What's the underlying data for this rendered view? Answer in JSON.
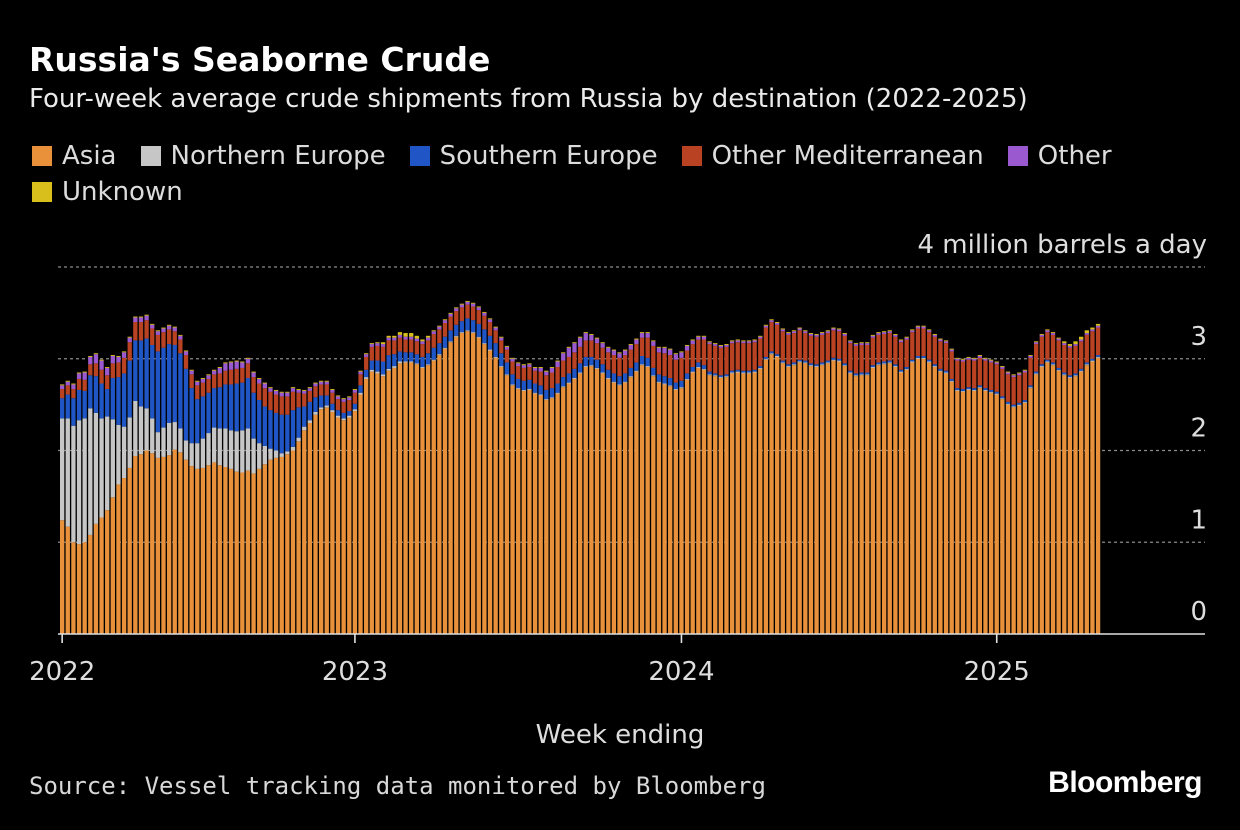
{
  "chart_data": {
    "type": "bar",
    "stacked": true,
    "title": "Russia's Seaborne Crude",
    "subtitle": "Four-week average crude shipments from Russia by destination (2022-2025)",
    "xlabel": "Week ending",
    "y_unit_label": "4 million barrels a day",
    "ylim": [
      0,
      4
    ],
    "y_ticks": [
      {
        "value": 0,
        "label": "0"
      },
      {
        "value": 1,
        "label": "1"
      },
      {
        "value": 2,
        "label": "2"
      },
      {
        "value": 3,
        "label": "3"
      },
      {
        "value": 4,
        "label": "4 million barrels a day"
      }
    ],
    "x_ticks": [
      {
        "week": 0,
        "label": "2022"
      },
      {
        "week": 52,
        "label": "2023"
      },
      {
        "week": 110,
        "label": "2024"
      },
      {
        "week": 166,
        "label": "2025"
      }
    ],
    "grid": true,
    "legend_position": "top",
    "source": "Source: Vessel tracking data monitored by Bloomberg",
    "brand": "Bloomberg",
    "series": [
      {
        "name": "Asia",
        "color": "#e8913a",
        "values": [
          1.24,
          1.17,
          1.0,
          0.98,
          1.0,
          1.08,
          1.2,
          1.27,
          1.35,
          1.49,
          1.63,
          1.7,
          1.81,
          1.94,
          1.96,
          2.0,
          1.97,
          1.92,
          1.93,
          1.95,
          2.01,
          1.98,
          1.9,
          1.83,
          1.8,
          1.81,
          1.84,
          1.87,
          1.84,
          1.82,
          1.8,
          1.77,
          1.76,
          1.78,
          1.75,
          1.8,
          1.85,
          1.9,
          1.92,
          1.93,
          1.96,
          2.0,
          2.1,
          2.22,
          2.3,
          2.39,
          2.45,
          2.47,
          2.42,
          2.36,
          2.33,
          2.36,
          2.43,
          2.61,
          2.78,
          2.86,
          2.84,
          2.81,
          2.87,
          2.9,
          2.95,
          2.96,
          2.96,
          2.94,
          2.9,
          2.93,
          2.98,
          3.04,
          3.11,
          3.18,
          3.24,
          3.28,
          3.3,
          3.28,
          3.23,
          3.16,
          3.09,
          3.01,
          2.91,
          2.82,
          2.71,
          2.67,
          2.65,
          2.66,
          2.62,
          2.6,
          2.55,
          2.57,
          2.62,
          2.69,
          2.73,
          2.78,
          2.84,
          2.91,
          2.92,
          2.89,
          2.84,
          2.78,
          2.74,
          2.71,
          2.74,
          2.8,
          2.86,
          2.93,
          2.91,
          2.81,
          2.74,
          2.72,
          2.7,
          2.66,
          2.68,
          2.77,
          2.85,
          2.9,
          2.88,
          2.82,
          2.81,
          2.79,
          2.8,
          2.84,
          2.85,
          2.84,
          2.84,
          2.85,
          2.89,
          2.99,
          3.05,
          3.02,
          2.95,
          2.91,
          2.93,
          2.96,
          2.95,
          2.92,
          2.91,
          2.93,
          2.95,
          2.98,
          2.97,
          2.92,
          2.84,
          2.81,
          2.82,
          2.82,
          2.9,
          2.93,
          2.94,
          2.95,
          2.91,
          2.85,
          2.88,
          2.96,
          3.0,
          3.0,
          2.96,
          2.91,
          2.86,
          2.84,
          2.75,
          2.65,
          2.64,
          2.66,
          2.65,
          2.68,
          2.65,
          2.63,
          2.61,
          2.56,
          2.5,
          2.47,
          2.49,
          2.52,
          2.68,
          2.83,
          2.91,
          2.96,
          2.93,
          2.87,
          2.82,
          2.79,
          2.81,
          2.86,
          2.93,
          2.97,
          3.01
        ]
      },
      {
        "name": "Northern Europe",
        "color": "#c6c6c6",
        "values": [
          1.11,
          1.18,
          1.27,
          1.35,
          1.35,
          1.38,
          1.21,
          1.08,
          1.02,
          0.85,
          0.65,
          0.56,
          0.55,
          0.6,
          0.52,
          0.46,
          0.38,
          0.28,
          0.32,
          0.35,
          0.3,
          0.26,
          0.21,
          0.25,
          0.28,
          0.32,
          0.35,
          0.38,
          0.4,
          0.42,
          0.42,
          0.44,
          0.46,
          0.46,
          0.38,
          0.28,
          0.2,
          0.12,
          0.08,
          0.04,
          0.03,
          0.04,
          0.04,
          0.04,
          0.03,
          0.03,
          0.02,
          0.02,
          0.02,
          0.02,
          0.02,
          0.02,
          0.02,
          0.02,
          0.02,
          0.02,
          0.02,
          0.02,
          0.02,
          0.02,
          0.02,
          0.01,
          0.01,
          0.01,
          0.01,
          0.01,
          0.01,
          0.01,
          0.01,
          0.01,
          0.01,
          0.01,
          0.01,
          0.01,
          0.01,
          0.01,
          0.01,
          0.01,
          0.01,
          0.01,
          0.01,
          0.01,
          0.01,
          0.01,
          0.01,
          0.01,
          0.01,
          0.01,
          0.01,
          0.01,
          0.01,
          0.01,
          0.01,
          0.01,
          0.01,
          0.01,
          0.01,
          0.01,
          0.01,
          0.01,
          0.01,
          0.01,
          0.01,
          0.01,
          0.01,
          0.01,
          0.01,
          0.01,
          0.01,
          0.01,
          0.01,
          0.01,
          0.01,
          0.01,
          0.01,
          0.01,
          0.01,
          0.01,
          0.01,
          0.01,
          0.01,
          0.01,
          0.01,
          0.01,
          0.01,
          0.01,
          0.01,
          0.01,
          0.01,
          0.01,
          0.01,
          0.01,
          0.01,
          0.01,
          0.01,
          0.01,
          0.01,
          0.01,
          0.01,
          0.01,
          0.01,
          0.01,
          0.01,
          0.01,
          0.01,
          0.01,
          0.01,
          0.01,
          0.01,
          0.01,
          0.01,
          0.01,
          0.01,
          0.01,
          0.01,
          0.01,
          0.01,
          0.01,
          0.01,
          0.01,
          0.01,
          0.01,
          0.01,
          0.01,
          0.01,
          0.01,
          0.01,
          0.01,
          0.01,
          0.01,
          0.01,
          0.01,
          0.01,
          0.01,
          0.01,
          0.01,
          0.01,
          0.01,
          0.01,
          0.01,
          0.01,
          0.01,
          0.01,
          0.01,
          0.01,
          0.01,
          0.01,
          0.01,
          0.01,
          0.01,
          0.01
        ]
      },
      {
        "name": "Southern Europe",
        "color": "#1f55c4",
        "values": [
          0.22,
          0.26,
          0.3,
          0.33,
          0.3,
          0.36,
          0.4,
          0.38,
          0.3,
          0.45,
          0.52,
          0.58,
          0.62,
          0.66,
          0.72,
          0.76,
          0.8,
          0.88,
          0.87,
          0.86,
          0.84,
          0.82,
          0.78,
          0.6,
          0.48,
          0.46,
          0.44,
          0.43,
          0.45,
          0.48,
          0.5,
          0.52,
          0.52,
          0.55,
          0.5,
          0.47,
          0.43,
          0.42,
          0.41,
          0.42,
          0.4,
          0.4,
          0.33,
          0.22,
          0.2,
          0.16,
          0.13,
          0.11,
          0.07,
          0.06,
          0.06,
          0.05,
          0.06,
          0.08,
          0.08,
          0.1,
          0.12,
          0.14,
          0.15,
          0.13,
          0.11,
          0.1,
          0.1,
          0.1,
          0.11,
          0.12,
          0.13,
          0.12,
          0.12,
          0.12,
          0.12,
          0.12,
          0.13,
          0.13,
          0.14,
          0.15,
          0.15,
          0.15,
          0.14,
          0.13,
          0.11,
          0.1,
          0.1,
          0.1,
          0.1,
          0.1,
          0.1,
          0.1,
          0.1,
          0.1,
          0.1,
          0.1,
          0.1,
          0.1,
          0.09,
          0.09,
          0.09,
          0.09,
          0.09,
          0.09,
          0.09,
          0.09,
          0.09,
          0.09,
          0.09,
          0.08,
          0.08,
          0.08,
          0.08,
          0.07,
          0.07,
          0.06,
          0.05,
          0.05,
          0.04,
          0.03,
          0.02,
          0.02,
          0.02,
          0.02,
          0.02,
          0.02,
          0.02,
          0.02,
          0.02,
          0.02,
          0.02,
          0.02,
          0.02,
          0.02,
          0.02,
          0.02,
          0.02,
          0.02,
          0.02,
          0.02,
          0.02,
          0.02,
          0.02,
          0.02,
          0.02,
          0.02,
          0.02,
          0.02,
          0.02,
          0.02,
          0.02,
          0.02,
          0.02,
          0.02,
          0.02,
          0.02,
          0.02,
          0.02,
          0.02,
          0.02,
          0.02,
          0.02,
          0.02,
          0.02,
          0.02,
          0.02,
          0.02,
          0.02,
          0.02,
          0.02,
          0.02,
          0.02,
          0.02,
          0.02,
          0.02,
          0.02,
          0.02,
          0.02,
          0.02,
          0.02,
          0.02,
          0.02,
          0.02,
          0.02,
          0.02,
          0.02,
          0.02,
          0.02,
          0.02,
          0.02,
          0.02,
          0.02,
          0.02,
          0.02,
          0.02,
          0.02,
          0.02,
          0.02,
          0.02
        ]
      },
      {
        "name": "Other Mediterranean",
        "color": "#b84222",
        "values": [
          0.1,
          0.1,
          0.1,
          0.12,
          0.12,
          0.12,
          0.14,
          0.15,
          0.15,
          0.16,
          0.16,
          0.17,
          0.2,
          0.2,
          0.2,
          0.2,
          0.18,
          0.18,
          0.17,
          0.16,
          0.15,
          0.15,
          0.15,
          0.15,
          0.15,
          0.15,
          0.15,
          0.15,
          0.15,
          0.15,
          0.16,
          0.16,
          0.16,
          0.16,
          0.17,
          0.18,
          0.2,
          0.2,
          0.2,
          0.2,
          0.2,
          0.2,
          0.16,
          0.14,
          0.12,
          0.12,
          0.12,
          0.12,
          0.12,
          0.12,
          0.12,
          0.12,
          0.12,
          0.12,
          0.14,
          0.15,
          0.16,
          0.16,
          0.16,
          0.15,
          0.15,
          0.14,
          0.14,
          0.14,
          0.14,
          0.14,
          0.15,
          0.15,
          0.15,
          0.15,
          0.15,
          0.15,
          0.15,
          0.15,
          0.15,
          0.15,
          0.15,
          0.14,
          0.14,
          0.14,
          0.14,
          0.14,
          0.14,
          0.14,
          0.14,
          0.15,
          0.16,
          0.17,
          0.18,
          0.18,
          0.18,
          0.18,
          0.18,
          0.18,
          0.18,
          0.18,
          0.18,
          0.19,
          0.2,
          0.2,
          0.2,
          0.2,
          0.2,
          0.2,
          0.22,
          0.24,
          0.24,
          0.25,
          0.25,
          0.25,
          0.25,
          0.25,
          0.25,
          0.25,
          0.28,
          0.3,
          0.3,
          0.3,
          0.3,
          0.3,
          0.3,
          0.3,
          0.3,
          0.3,
          0.3,
          0.32,
          0.32,
          0.32,
          0.32,
          0.32,
          0.32,
          0.32,
          0.3,
          0.3,
          0.3,
          0.3,
          0.3,
          0.3,
          0.3,
          0.3,
          0.3,
          0.3,
          0.3,
          0.3,
          0.3,
          0.3,
          0.3,
          0.3,
          0.3,
          0.3,
          0.3,
          0.3,
          0.3,
          0.3,
          0.3,
          0.3,
          0.3,
          0.3,
          0.3,
          0.3,
          0.3,
          0.3,
          0.3,
          0.3,
          0.3,
          0.3,
          0.3,
          0.3,
          0.3,
          0.3,
          0.3,
          0.3,
          0.3,
          0.3,
          0.3,
          0.3,
          0.3,
          0.3,
          0.3,
          0.3,
          0.3,
          0.3,
          0.3,
          0.3,
          0.3,
          0.3,
          0.3,
          0.3,
          0.3,
          0.3,
          0.3,
          0.3,
          0.3
        ]
      },
      {
        "name": "Other",
        "color": "#9b59d0",
        "values": [
          0.04,
          0.04,
          0.05,
          0.06,
          0.08,
          0.08,
          0.1,
          0.1,
          0.08,
          0.08,
          0.06,
          0.06,
          0.05,
          0.05,
          0.05,
          0.05,
          0.04,
          0.04,
          0.04,
          0.04,
          0.04,
          0.04,
          0.04,
          0.04,
          0.04,
          0.04,
          0.04,
          0.04,
          0.06,
          0.08,
          0.08,
          0.08,
          0.06,
          0.05,
          0.05,
          0.05,
          0.05,
          0.04,
          0.04,
          0.04,
          0.04,
          0.04,
          0.03,
          0.03,
          0.03,
          0.03,
          0.03,
          0.03,
          0.03,
          0.03,
          0.03,
          0.03,
          0.03,
          0.03,
          0.03,
          0.03,
          0.03,
          0.03,
          0.03,
          0.03,
          0.03,
          0.03,
          0.03,
          0.03,
          0.03,
          0.03,
          0.03,
          0.03,
          0.03,
          0.03,
          0.03,
          0.03,
          0.03,
          0.03,
          0.03,
          0.03,
          0.03,
          0.03,
          0.03,
          0.03,
          0.03,
          0.03,
          0.03,
          0.03,
          0.03,
          0.04,
          0.04,
          0.05,
          0.06,
          0.08,
          0.1,
          0.1,
          0.1,
          0.08,
          0.06,
          0.05,
          0.05,
          0.05,
          0.05,
          0.05,
          0.05,
          0.05,
          0.05,
          0.05,
          0.05,
          0.05,
          0.05,
          0.06,
          0.06,
          0.06,
          0.06,
          0.05,
          0.04,
          0.03,
          0.03,
          0.02,
          0.02,
          0.02,
          0.02,
          0.02,
          0.02,
          0.02,
          0.02,
          0.02,
          0.02,
          0.02,
          0.02,
          0.02,
          0.02,
          0.02,
          0.02,
          0.02,
          0.02,
          0.02,
          0.02,
          0.02,
          0.02,
          0.02,
          0.02,
          0.02,
          0.02,
          0.02,
          0.02,
          0.02,
          0.02,
          0.02,
          0.02,
          0.02,
          0.02,
          0.02,
          0.02,
          0.02,
          0.02,
          0.02,
          0.02,
          0.02,
          0.02,
          0.02,
          0.02,
          0.02,
          0.02,
          0.02,
          0.02,
          0.02,
          0.02,
          0.02,
          0.02,
          0.02,
          0.02,
          0.02,
          0.02,
          0.02,
          0.02,
          0.02,
          0.02,
          0.02,
          0.02,
          0.02,
          0.02,
          0.02,
          0.02,
          0.02,
          0.02,
          0.02,
          0.02,
          0.02,
          0.02,
          0.02,
          0.02,
          0.02,
          0.02,
          0.02,
          0.02
        ]
      },
      {
        "name": "Unknown",
        "color": "#d9bf1c",
        "values": [
          0.01,
          0.01,
          0.01,
          0.01,
          0.01,
          0.01,
          0.01,
          0.01,
          0.01,
          0.01,
          0.01,
          0.01,
          0.01,
          0.01,
          0.01,
          0.01,
          0.01,
          0.01,
          0.01,
          0.01,
          0.01,
          0.01,
          0.01,
          0.01,
          0.01,
          0.01,
          0.01,
          0.01,
          0.01,
          0.01,
          0.01,
          0.01,
          0.01,
          0.01,
          0.01,
          0.01,
          0.01,
          0.01,
          0.01,
          0.01,
          0.01,
          0.01,
          0.01,
          0.01,
          0.01,
          0.01,
          0.01,
          0.01,
          0.01,
          0.01,
          0.01,
          0.01,
          0.01,
          0.01,
          0.01,
          0.01,
          0.01,
          0.02,
          0.02,
          0.02,
          0.03,
          0.04,
          0.04,
          0.03,
          0.02,
          0.02,
          0.01,
          0.01,
          0.01,
          0.01,
          0.01,
          0.01,
          0.01,
          0.01,
          0.01,
          0.01,
          0.01,
          0.01,
          0.01,
          0.01,
          0.01,
          0.01,
          0.01,
          0.01,
          0.01,
          0.01,
          0.01,
          0.01,
          0.01,
          0.01,
          0.01,
          0.01,
          0.01,
          0.01,
          0.01,
          0.01,
          0.01,
          0.01,
          0.01,
          0.01,
          0.01,
          0.01,
          0.01,
          0.01,
          0.01,
          0.01,
          0.01,
          0.01,
          0.01,
          0.01,
          0.01,
          0.01,
          0.01,
          0.01,
          0.01,
          0.01,
          0.01,
          0.01,
          0.01,
          0.01,
          0.01,
          0.01,
          0.01,
          0.01,
          0.01,
          0.01,
          0.01,
          0.01,
          0.01,
          0.01,
          0.01,
          0.01,
          0.01,
          0.01,
          0.01,
          0.01,
          0.01,
          0.01,
          0.01,
          0.01,
          0.01,
          0.01,
          0.01,
          0.01,
          0.01,
          0.01,
          0.01,
          0.01,
          0.01,
          0.01,
          0.01,
          0.01,
          0.01,
          0.01,
          0.01,
          0.01,
          0.01,
          0.01,
          0.01,
          0.01,
          0.01,
          0.01,
          0.01,
          0.01,
          0.01,
          0.01,
          0.01,
          0.01,
          0.01,
          0.01,
          0.01,
          0.01,
          0.01,
          0.01,
          0.01,
          0.01,
          0.01,
          0.01,
          0.02,
          0.02,
          0.03,
          0.03,
          0.03,
          0.02,
          0.02,
          0.03,
          0.04,
          0.04,
          0.05
        ]
      }
    ]
  }
}
